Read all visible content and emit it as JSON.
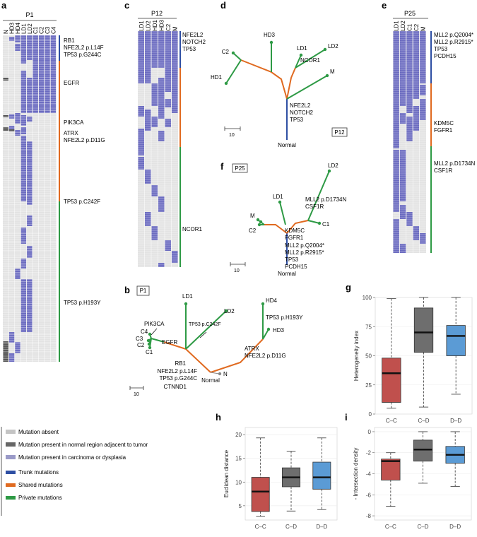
{
  "colors": {
    "mut_absent": "#e3e3e3",
    "mut_normal": "#555555",
    "mut_tumor": "#6b6bc0",
    "trunk": "#2e4fa3",
    "shared": "#e06a20",
    "private": "#2e9a45",
    "box_cc": "#c0504d",
    "box_cd": "#6e6e6e",
    "box_dd": "#5b9bd5"
  },
  "panels": {
    "a": {
      "letter": "a",
      "patient": "P1",
      "columns": [
        "N",
        "HD3",
        "HD4",
        "LD1",
        "LD2",
        "C1",
        "C2",
        "C3",
        "C4"
      ],
      "notes": [
        "RB1",
        "NFE2L2 p.L14F",
        "TP53 p.G244C",
        "EGFR",
        "PIK3CA",
        "ATRX",
        "NFE2L2 p.D11G",
        "TP53 p.C242F",
        "TP53 p.H193Y"
      ]
    },
    "b": {
      "letter": "b",
      "patient": "P1",
      "leaves": [
        "LD1",
        "LD2",
        "HD4",
        "HD3",
        "PIK3CA",
        "C4",
        "C3",
        "C2",
        "C1",
        "N"
      ],
      "root": "Normal",
      "labels": [
        "EGFR",
        "TP53 p.C242F",
        "TP53 p.H193Y",
        "ATRX",
        "NFE2L2 p.D11G",
        "RB1",
        "NFE2L2 p.L14F",
        "TP53 p.G244C",
        "CTNND1"
      ],
      "scale": "10"
    },
    "c": {
      "letter": "c",
      "patient": "P12",
      "columns": [
        "LD1",
        "LD2",
        "HD1",
        "HD3",
        "C2",
        "M"
      ],
      "notes": [
        "NFE2L2",
        "NOTCH2",
        "TP53",
        "NCOR1"
      ]
    },
    "d": {
      "letter": "d",
      "patient": "P12",
      "leaves": [
        "HD3",
        "LD1",
        "LD2",
        "C2",
        "NCOR1",
        "M",
        "HD1"
      ],
      "labels": [
        "NFE2L2",
        "NOTCH2",
        "TP53"
      ],
      "root": "Normal",
      "scale": "10"
    },
    "e": {
      "letter": "e",
      "patient": "P25",
      "columns": [
        "LD1",
        "LD2",
        "C1",
        "C2",
        "M"
      ],
      "notes": [
        "MLL2 p.Q2004*",
        "MLL2 p.R2915*",
        "TP53",
        "PCDH15",
        "KDM5C",
        "FGFR1",
        "MLL2 p.D1734N",
        "CSF1R"
      ]
    },
    "f": {
      "letter": "f",
      "patient": "P25",
      "leaves": [
        "LD2",
        "LD1",
        "M",
        "C2",
        "C1"
      ],
      "labels": [
        "MLL2 p.D1734N",
        "CSF1R",
        "KDM5C",
        "FGFR1",
        "MLL2 p.Q2004*",
        "MLL2 p.R2915*",
        "TP53",
        "PCDH15"
      ],
      "root": "Normal",
      "scale": "10"
    }
  },
  "legend": {
    "items": [
      {
        "label": "Mutation absent",
        "color": "#c4c4c4"
      },
      {
        "label": "Mutation present in normal region adjacent to tumor",
        "color": "#666666"
      },
      {
        "label": "Mutation present in carcinoma or dysplasia",
        "color": "#9a9ac8"
      },
      {
        "label": "Trunk mutations",
        "color": "#2e4fa3"
      },
      {
        "label": "Shared mutations",
        "color": "#e06a20"
      },
      {
        "label": "Private mutations",
        "color": "#2e9a45"
      }
    ]
  },
  "chart_data": [
    {
      "id": "g",
      "letter": "g",
      "type": "box",
      "categories": [
        "C–C",
        "C–D",
        "D–D"
      ],
      "ylabel": "Heterogeneity index",
      "xlabel": "",
      "ylim": [
        0,
        100
      ],
      "yticks": [
        0,
        25,
        50,
        75,
        100
      ],
      "boxes": [
        {
          "name": "C–C",
          "whisker_low": 5,
          "q1": 10,
          "median": 35,
          "q3": 48,
          "whisker_high": 99
        },
        {
          "name": "C–D",
          "whisker_low": 6,
          "q1": 53,
          "median": 70,
          "q3": 91,
          "whisker_high": 100
        },
        {
          "name": "D–D",
          "whisker_low": 17,
          "q1": 50,
          "median": 67,
          "q3": 76,
          "whisker_high": 100
        }
      ]
    },
    {
      "id": "h",
      "letter": "h",
      "type": "box",
      "categories": [
        "C–C",
        "C–D",
        "D–D"
      ],
      "ylabel": "Euclidean distance",
      "xlabel": "",
      "ylim": [
        2,
        21.5
      ],
      "yticks": [
        5,
        10,
        15,
        20
      ],
      "boxes": [
        {
          "name": "C–C",
          "whisker_low": 2.8,
          "q1": 3.8,
          "median": 8,
          "q3": 11,
          "whisker_high": 19.3
        },
        {
          "name": "C–D",
          "whisker_low": 3.9,
          "q1": 9,
          "median": 11,
          "q3": 13,
          "whisker_high": 16.5
        },
        {
          "name": "D–D",
          "whisker_low": 4.2,
          "q1": 8.5,
          "median": 11,
          "q3": 14.2,
          "whisker_high": 19.3
        }
      ]
    },
    {
      "id": "i",
      "letter": "i",
      "type": "box",
      "categories": [
        "C–C",
        "C–D",
        "D–D"
      ],
      "ylabel": "- Intersection density",
      "xlabel": "",
      "ylim": [
        -8.4,
        0.4
      ],
      "yticks": [
        0,
        -2,
        -4,
        -6,
        -8
      ],
      "boxes": [
        {
          "name": "C–C",
          "whisker_low": -7.1,
          "q1": -4.6,
          "median": -2.8,
          "q3": -2.6,
          "whisker_high": -2
        },
        {
          "name": "C–D",
          "whisker_low": -4.9,
          "q1": -2.8,
          "median": -1.7,
          "q3": -0.8,
          "whisker_high": 0
        },
        {
          "name": "D–D",
          "whisker_low": -5.2,
          "q1": -3,
          "median": -2.2,
          "q3": -1.4,
          "whisker_high": 0
        }
      ]
    }
  ]
}
